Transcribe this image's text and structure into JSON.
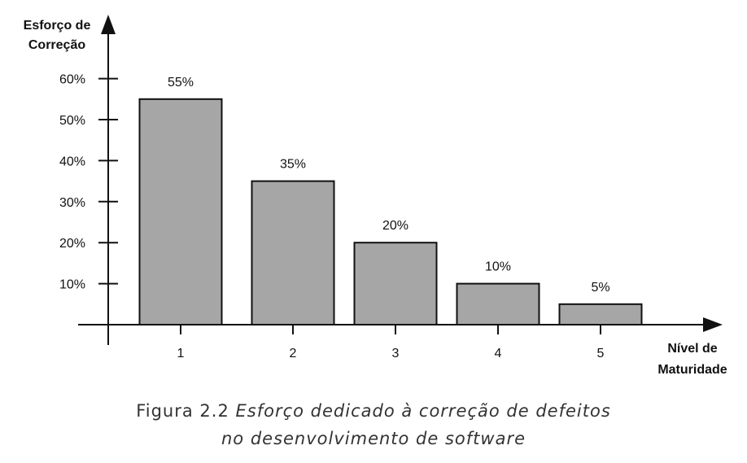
{
  "chart_data": {
    "type": "bar",
    "categories": [
      "1",
      "2",
      "3",
      "4",
      "5"
    ],
    "values": [
      55,
      35,
      20,
      10,
      5
    ],
    "data_labels": [
      "55%",
      "35%",
      "20%",
      "10%",
      "5%"
    ],
    "y_ticks": [
      10,
      20,
      30,
      40,
      50,
      60
    ],
    "y_tick_labels": [
      "10%",
      "20%",
      "30%",
      "40%",
      "50%",
      "60%"
    ],
    "ylim": [
      0,
      60
    ],
    "ylabel_lines": [
      "Esforço de",
      "Correção"
    ],
    "xlabel_lines": [
      "Nível de",
      "Maturidade"
    ],
    "grid": false,
    "legend": "none",
    "bar_color": "#a6a6a6",
    "bar_stroke": "#111111"
  },
  "caption": {
    "prefix": "Figura 2.2",
    "line1_italic": "Esforço dedicado à correção de defeitos",
    "line2_italic": "no desenvolvimento de software"
  }
}
